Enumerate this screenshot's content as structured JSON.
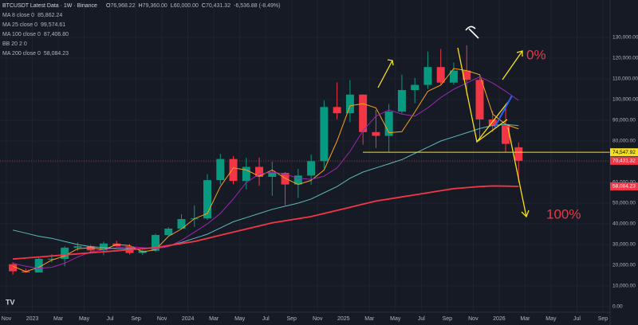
{
  "header": {
    "title": "BTCUSDT Latest Data · 1W · Binance",
    "ohlc": [
      {
        "prefix": "O",
        "value": 76968.22,
        "label": "76,968.22"
      },
      {
        "prefix": "H",
        "value": 79360.0,
        "label": "79,360.00"
      },
      {
        "prefix": "L",
        "value": 60000.0,
        "label": "60,000.00"
      },
      {
        "prefix": "C",
        "value": 70431.32,
        "label": "70,431.32"
      }
    ],
    "change": {
      "value": -6536.88,
      "label": "-6,536.88 (-8.49%)"
    },
    "bb_label": "BB 20 2 0"
  },
  "chart_data": {
    "type": "candlestick",
    "x": [
      "2022-11",
      "2022-12",
      "2023-01",
      "2023-02",
      "2023-03",
      "2023-04",
      "2023-05",
      "2023-06",
      "2023-07",
      "2023-08",
      "2023-09",
      "2023-10",
      "2023-11",
      "2023-12",
      "2024-01",
      "2024-02",
      "2024-03",
      "2024-04",
      "2024-05",
      "2024-06",
      "2024-07",
      "2024-08",
      "2024-09",
      "2024-10",
      "2024-11",
      "2024-12",
      "2025-01",
      "2025-02",
      "2025-03",
      "2025-04",
      "2025-05",
      "2025-06",
      "2025-07",
      "2025-08",
      "2025-09",
      "2025-10",
      "2025-11",
      "2025-12",
      "2026-01",
      "2026-02"
    ],
    "open": [
      20500,
      17100,
      16500,
      23100,
      23100,
      28500,
      29200,
      27200,
      30500,
      29200,
      25900,
      27000,
      34600,
      37700,
      42300,
      42600,
      61100,
      71300,
      60700,
      67500,
      62700,
      64600,
      59000,
      63300,
      70300,
      96400,
      93400,
      102400,
      84300,
      82500,
      94200,
      104600,
      107100,
      115700,
      108200,
      114000,
      109500,
      90400,
      87600,
      76968.22
    ],
    "high": [
      21500,
      18400,
      23900,
      25300,
      29200,
      31000,
      29800,
      31400,
      31800,
      30200,
      27500,
      35200,
      38400,
      44700,
      48900,
      64000,
      73800,
      72800,
      71900,
      72000,
      70000,
      65000,
      66500,
      73600,
      99600,
      108300,
      109400,
      102500,
      95000,
      97900,
      112000,
      110500,
      123200,
      124400,
      117900,
      126200,
      110600,
      94600,
      97900,
      79360
    ],
    "low": [
      15500,
      16300,
      16500,
      21400,
      19500,
      26900,
      25800,
      24800,
      28900,
      25200,
      24900,
      26500,
      34100,
      37600,
      38500,
      41900,
      59000,
      59100,
      56600,
      58400,
      53500,
      49000,
      52500,
      58900,
      66800,
      90500,
      89100,
      78200,
      76600,
      74500,
      93300,
      98200,
      105100,
      107300,
      107200,
      102000,
      80600,
      84400,
      74500,
      60000
    ],
    "close": [
      17100,
      16500,
      23100,
      23100,
      28500,
      29200,
      27200,
      30500,
      29200,
      25900,
      27000,
      34600,
      37700,
      42300,
      42600,
      61100,
      71300,
      60700,
      67500,
      62700,
      64600,
      59000,
      63300,
      70300,
      96400,
      93400,
      102400,
      84300,
      82500,
      94200,
      104600,
      107100,
      115700,
      108200,
      114000,
      109500,
      90400,
      87600,
      78600,
      70431.32
    ],
    "up_color": "#089981",
    "down_color": "#f23645",
    "series": [
      {
        "name": "MA 8 close 0",
        "color": "#f7a21b",
        "last_value": {
          "value": 85862.24,
          "label": "85,862.24"
        },
        "values": [
          19500,
          17000,
          19000,
          22500,
          24500,
          28000,
          28500,
          27500,
          30000,
          29500,
          26500,
          27500,
          34000,
          37500,
          42500,
          45000,
          58000,
          67000,
          66000,
          63000,
          66000,
          62000,
          59000,
          61000,
          66000,
          80000,
          97000,
          98000,
          96000,
          84000,
          84500,
          94000,
          104000,
          107000,
          115000,
          114000,
          112000,
          93000,
          88000,
          85862.24
        ]
      },
      {
        "name": "MA 25 close 0",
        "color": "#9c27b0",
        "last_value": {
          "value": 99574.61,
          "label": "99,574.61"
        },
        "values": [
          21000,
          19500,
          18500,
          19000,
          21000,
          24000,
          26500,
          27500,
          28500,
          29000,
          28500,
          28000,
          29000,
          32000,
          36000,
          40000,
          45000,
          52000,
          60000,
          64000,
          65000,
          64000,
          62000,
          61500,
          63000,
          67000,
          75000,
          85000,
          92000,
          95000,
          93000,
          92000,
          96000,
          101000,
          105000,
          108000,
          111000,
          108000,
          104000,
          99574.61
        ]
      },
      {
        "name": "MA 100 close 0",
        "color": "#5fb8b8",
        "last_value": {
          "value": 87406.8,
          "label": "87,406.80"
        },
        "values": [
          37000,
          35500,
          34000,
          33000,
          31500,
          30000,
          29000,
          28500,
          28000,
          28000,
          28000,
          28500,
          29500,
          31000,
          33000,
          35000,
          38000,
          41000,
          43000,
          45000,
          47000,
          48500,
          50000,
          52000,
          55000,
          58000,
          62000,
          65000,
          67000,
          69000,
          71000,
          74000,
          77000,
          80000,
          82000,
          84000,
          86000,
          87500,
          88000,
          87406.8
        ]
      },
      {
        "name": "MA 200 close 0",
        "color": "#f23645",
        "last_value": {
          "value": 58084.23,
          "label": "58,084.23"
        },
        "values": [
          23000,
          23500,
          24000,
          24500,
          25000,
          25500,
          26000,
          26500,
          27000,
          27500,
          28000,
          28500,
          29500,
          30500,
          31500,
          33000,
          34500,
          36000,
          37500,
          39000,
          40500,
          41500,
          42500,
          43500,
          45000,
          46500,
          48000,
          49500,
          51000,
          52000,
          53000,
          54000,
          55000,
          56000,
          57000,
          57500,
          58000,
          58300,
          58200,
          58084.23
        ]
      }
    ],
    "hline": {
      "value": 74547.92,
      "label": "74,547.92",
      "color": "#f7e018"
    },
    "annotations": [
      {
        "text": "0%",
        "color": "#f23645"
      },
      {
        "text": "100%",
        "color": "#f23645"
      }
    ],
    "ylim": [
      0,
      130000
    ],
    "yticks": [
      {
        "value": 0,
        "label": "0.00"
      },
      {
        "value": 10000,
        "label": "10,000.00"
      },
      {
        "value": 20000,
        "label": "20,000.00"
      },
      {
        "value": 30000,
        "label": "30,000.00"
      },
      {
        "value": 40000,
        "label": "40,000.00"
      },
      {
        "value": 50000,
        "label": "50,000.00"
      },
      {
        "value": 60000,
        "label": "60,000.00"
      },
      {
        "value": 70000,
        "label": "70,000.00"
      },
      {
        "value": 80000,
        "label": "80,000.00"
      },
      {
        "value": 90000,
        "label": "90,000.00"
      },
      {
        "value": 100000,
        "label": "100,000.00"
      },
      {
        "value": 110000,
        "label": "110,000.00"
      },
      {
        "value": 120000,
        "label": "120,000.00"
      },
      {
        "value": 130000,
        "label": "130,000.00"
      }
    ],
    "xticks": [
      {
        "value": "2022-11",
        "label": "Nov"
      },
      {
        "value": "2023-01",
        "label": "2023"
      },
      {
        "value": "2023-03",
        "label": "Mar"
      },
      {
        "value": "2023-05",
        "label": "May"
      },
      {
        "value": "2023-07",
        "label": "Jul"
      },
      {
        "value": "2023-09",
        "label": "Sep"
      },
      {
        "value": "2023-11",
        "label": "Nov"
      },
      {
        "value": "2024-01",
        "label": "2024"
      },
      {
        "value": "2024-03",
        "label": "Mar"
      },
      {
        "value": "2024-05",
        "label": "May"
      },
      {
        "value": "2024-07",
        "label": "Jul"
      },
      {
        "value": "2024-09",
        "label": "Sep"
      },
      {
        "value": "2024-11",
        "label": "Nov"
      },
      {
        "value": "2025-01",
        "label": "2025"
      },
      {
        "value": "2025-03",
        "label": "Mar"
      },
      {
        "value": "2025-05",
        "label": "May"
      },
      {
        "value": "2025-07",
        "label": "Jul"
      },
      {
        "value": "2025-09",
        "label": "Sep"
      },
      {
        "value": "2025-11",
        "label": "Nov"
      },
      {
        "value": "2026-01",
        "label": "2026"
      },
      {
        "value": "2026-03",
        "label": "Mar"
      },
      {
        "value": "2026-05",
        "label": "May"
      },
      {
        "value": "2026-07",
        "label": "Jul"
      },
      {
        "value": "2026-09",
        "label": "Sep"
      }
    ],
    "grid": true
  }
}
